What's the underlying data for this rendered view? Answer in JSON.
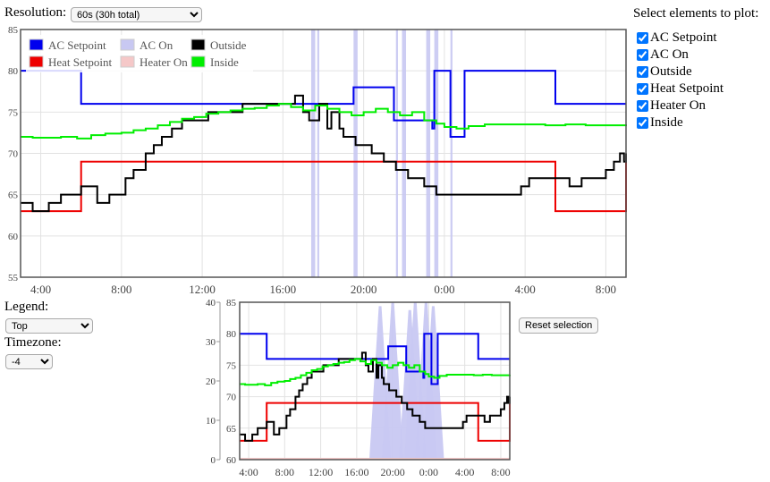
{
  "controls": {
    "resolution_label": "Resolution:",
    "resolution_value": "60s (30h total)",
    "select_label": "Select elements to plot:",
    "legend_label": "Legend:",
    "legend_value": "Top",
    "timezone_label": "Timezone:",
    "timezone_value": "-4",
    "reset_label": "Reset selection"
  },
  "elements": [
    {
      "label": "AC Setpoint",
      "checked": true
    },
    {
      "label": "AC On",
      "checked": true
    },
    {
      "label": "Outside",
      "checked": true
    },
    {
      "label": "Heat Setpoint",
      "checked": true
    },
    {
      "label": "Heater On",
      "checked": true
    },
    {
      "label": "Inside",
      "checked": true
    }
  ],
  "colors": {
    "ac_setpoint": "#0000ee",
    "ac_on": "#c8c8f2",
    "outside": "#000000",
    "heat_setpoint": "#ee0000",
    "heater_on": "#f5c8c8",
    "inside": "#00ee00"
  },
  "chart_data": [
    {
      "type": "line",
      "name": "main",
      "x_unit": "hours since 03:00",
      "xlim": [
        0,
        30
      ],
      "ylim": [
        55,
        85
      ],
      "y_ticks": [
        55,
        60,
        65,
        70,
        75,
        80,
        85
      ],
      "x_ticks": [
        {
          "at": 1,
          "label": "4:00"
        },
        {
          "at": 5,
          "label": "8:00"
        },
        {
          "at": 9,
          "label": "12:00"
        },
        {
          "at": 13,
          "label": "16:00"
        },
        {
          "at": 17,
          "label": "20:00"
        },
        {
          "at": 21,
          "label": "0:00"
        },
        {
          "at": 25,
          "label": "4:00"
        },
        {
          "at": 29,
          "label": "8:00"
        }
      ],
      "grid": true,
      "legend": "top-left",
      "series": [
        {
          "name": "AC Setpoint",
          "key": "ac_setpoint",
          "step": true,
          "x": [
            0,
            3,
            14.2,
            16.5,
            18.5,
            19.2,
            20.4,
            20.5,
            21.3,
            22,
            26.5,
            30
          ],
          "y": [
            80,
            76,
            76,
            78,
            74,
            74,
            73,
            80,
            72,
            80,
            76,
            76
          ]
        },
        {
          "name": "Heat Setpoint",
          "key": "heat_setpoint",
          "step": true,
          "x": [
            0,
            3,
            19.1,
            26.5,
            30
          ],
          "y": [
            63,
            69,
            69,
            63,
            69
          ]
        },
        {
          "name": "Outside",
          "key": "outside",
          "step": true,
          "x": [
            0,
            0.6,
            1.4,
            2,
            3,
            3.8,
            4.4,
            5.2,
            5.6,
            6.2,
            6.6,
            7,
            7.5,
            8,
            9.3,
            11,
            12.4,
            13.6,
            14,
            14.3,
            14.8,
            15.2,
            15.4,
            15.8,
            16,
            16.6,
            17,
            17.4,
            18,
            18.6,
            19.2,
            20,
            20.6,
            21.2,
            22,
            24,
            24.8,
            25.2,
            26.5,
            27.2,
            27.8,
            28.4,
            29,
            29.4,
            29.7,
            29.9,
            30
          ],
          "y": [
            64,
            63,
            64,
            65,
            66,
            64,
            65,
            67,
            68,
            70,
            71,
            72,
            73,
            74,
            75,
            76,
            76,
            77,
            75,
            74,
            76,
            73,
            75,
            73,
            72,
            71,
            71,
            70,
            69,
            68,
            67,
            66,
            65,
            65,
            65,
            65,
            66,
            67,
            67,
            66,
            67,
            67,
            68,
            69,
            70,
            69,
            70
          ]
        },
        {
          "name": "Inside",
          "key": "inside",
          "step": true,
          "x": [
            0,
            0.6,
            2,
            2.8,
            3.5,
            4.2,
            5,
            5.6,
            6.2,
            6.8,
            7.4,
            8,
            8.6,
            9.2,
            9.8,
            10.4,
            11,
            11.6,
            12.2,
            12.8,
            13.4,
            14,
            14.6,
            15.2,
            15.8,
            16.4,
            17,
            17.6,
            18.2,
            18.8,
            19.4,
            20,
            20.6,
            21,
            21.6,
            22.2,
            23,
            26,
            27,
            28,
            30
          ],
          "y": [
            72,
            71.9,
            72,
            71.8,
            72.2,
            72.4,
            72.5,
            72.8,
            73,
            73.4,
            73.8,
            74.2,
            74.4,
            74.8,
            75,
            75.2,
            75.4,
            75.5,
            75.8,
            76,
            75.6,
            75.2,
            75.8,
            75.4,
            75,
            74.6,
            75,
            75.4,
            75,
            74.6,
            75,
            74,
            73.6,
            73.2,
            73,
            73.3,
            73.5,
            73.4,
            73.5,
            73.4,
            73.5
          ]
        }
      ],
      "ac_on_bands": [
        [
          14.4,
          14.6
        ],
        [
          14.7,
          14.8
        ],
        [
          16.5,
          16.7
        ],
        [
          18.6,
          18.7
        ],
        [
          18.9,
          19.1
        ],
        [
          20.1,
          20.3
        ],
        [
          20.5,
          20.7
        ],
        [
          21.3,
          21.4
        ]
      ]
    },
    {
      "type": "line",
      "name": "overview",
      "xlim": [
        0,
        30
      ],
      "ylim": [
        60,
        85
      ],
      "y_ticks": [
        60,
        65,
        70,
        75,
        80,
        85
      ],
      "y2lim": [
        0,
        40
      ],
      "y2_ticks": [
        0,
        10,
        20,
        30,
        40
      ],
      "x_ticks": [
        {
          "at": 1,
          "label": "4:00"
        },
        {
          "at": 5,
          "label": "8:00"
        },
        {
          "at": 9,
          "label": "12:00"
        },
        {
          "at": 13,
          "label": "16:00"
        },
        {
          "at": 17,
          "label": "20:00"
        },
        {
          "at": 21,
          "label": "0:00"
        },
        {
          "at": 25,
          "label": "4:00"
        },
        {
          "at": 29,
          "label": "8:00"
        }
      ],
      "ac_on_peaks": [
        {
          "x": 15.6,
          "v": 39
        },
        {
          "x": 17,
          "v": 40
        },
        {
          "x": 18.9,
          "v": 38
        },
        {
          "x": 19.5,
          "v": 40
        },
        {
          "x": 20.7,
          "v": 40
        },
        {
          "x": 21.5,
          "v": 39
        }
      ]
    }
  ]
}
